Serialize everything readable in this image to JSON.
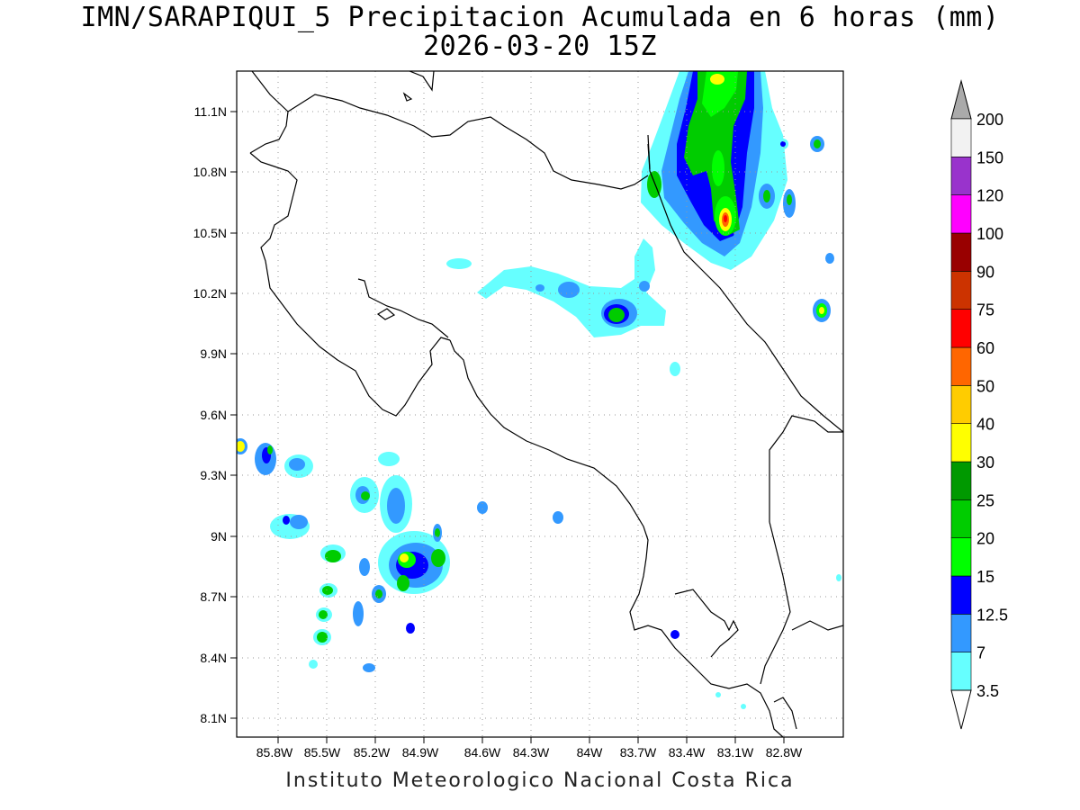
{
  "title": {
    "line1": "IMN/SARAPIQUI_5 Precipitacion Acumulada en 6 horas (mm)",
    "line2": "2026-03-20 15Z"
  },
  "footer": "Instituto Meteorologico Nacional Costa Rica",
  "map": {
    "lon_ticks": [
      "85.8W",
      "85.5W",
      "85.2W",
      "84.9W",
      "84.6W",
      "84.3W",
      "84W",
      "83.7W",
      "83.4W",
      "83.1W",
      "82.8W"
    ],
    "lat_ticks": [
      "11.1N",
      "10.8N",
      "10.5N",
      "10.2N",
      "9.9N",
      "9.6N",
      "9.3N",
      "9N",
      "8.7N",
      "8.4N",
      "8.1N"
    ]
  },
  "colorbar": {
    "levels": [
      "3.5",
      "7",
      "12.5",
      "15",
      "20",
      "25",
      "30",
      "40",
      "50",
      "60",
      "75",
      "90",
      "100",
      "120",
      "150",
      "200"
    ],
    "colors": [
      "#ffffff",
      "#66ffff",
      "#3399ff",
      "#0000ff",
      "#00ff00",
      "#00cc00",
      "#009900",
      "#ffff00",
      "#ffcc00",
      "#ff6600",
      "#ff0000",
      "#cc3300",
      "#990000",
      "#ff00ff",
      "#9933cc",
      "#f2f2f2",
      "#aaaaaa"
    ]
  }
}
